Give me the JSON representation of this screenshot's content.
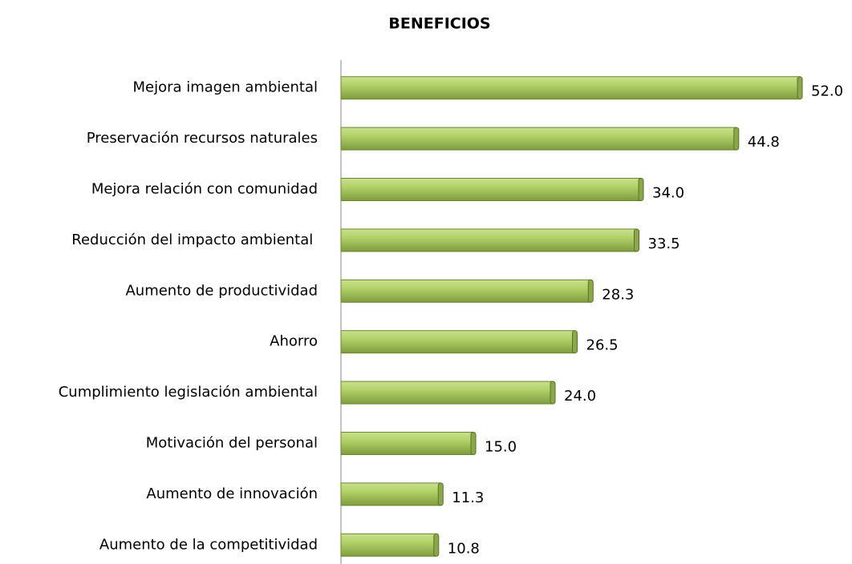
{
  "chart_data": {
    "type": "barh",
    "title": "BENEFICIOS",
    "categories": [
      "Mejora imagen ambiental",
      "Preservación recursos naturales",
      "Mejora relación con comunidad",
      "Reducción del impacto ambiental ",
      "Aumento de productividad",
      "Ahorro",
      "Cumplimiento legislación ambiental",
      "Motivación del personal",
      "Aumento de innovación",
      "Aumento de la competitividad"
    ],
    "values": [
      52.0,
      44.8,
      34.0,
      33.5,
      28.3,
      26.5,
      24.0,
      15.0,
      11.3,
      10.8
    ],
    "value_labels": [
      "52.0",
      "44.8",
      "34.0",
      "33.5",
      "28.3",
      "26.5",
      "24.0",
      "15.0",
      "11.3",
      "10.8"
    ],
    "color": "#9bbb59",
    "xlim": [
      0,
      55
    ]
  }
}
